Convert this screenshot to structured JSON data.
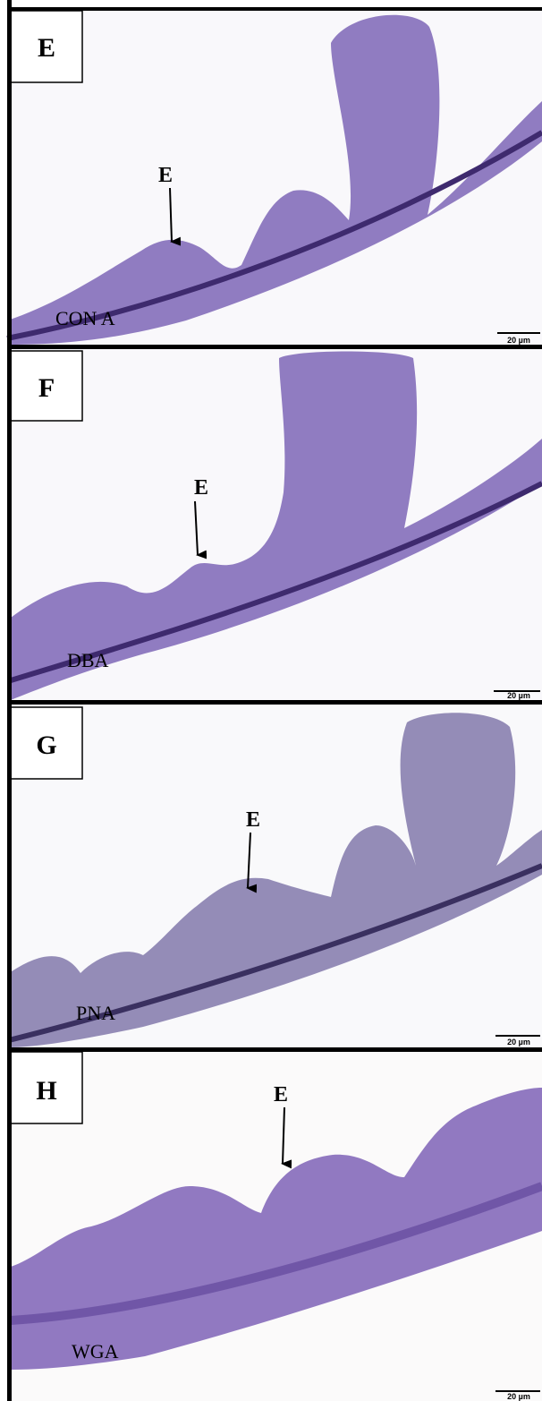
{
  "panels": [
    {
      "letter": "E",
      "arrow_label": "E",
      "stain": "CON A",
      "scale_label": "20 µm"
    },
    {
      "letter": "F",
      "arrow_label": "E",
      "stain": "DBA",
      "scale_label": "20 µm"
    },
    {
      "letter": "G",
      "arrow_label": "E",
      "stain": "PNA",
      "scale_label": "20 µm"
    },
    {
      "letter": "H",
      "arrow_label": "E",
      "stain": "WGA",
      "scale_label": "20 µm"
    }
  ]
}
